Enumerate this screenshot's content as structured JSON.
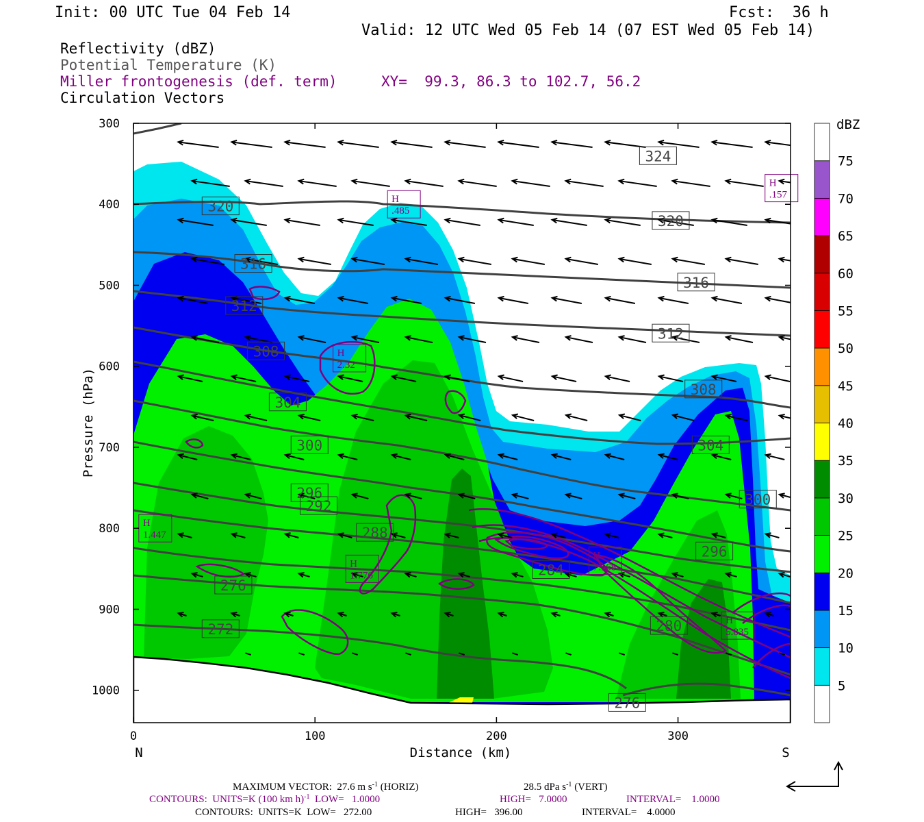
{
  "header": {
    "init": "Init: 00 UTC Tue 04 Feb 14",
    "fcst": "Fcst:  36 h",
    "valid": "Valid: 12 UTC Wed 05 Feb 14 (07 EST Wed 05 Feb 14)",
    "fields": [
      {
        "text": "Reflectivity (dBZ)",
        "color": "#000000"
      },
      {
        "text": "Potential Temperature (K)",
        "color": "#555555"
      },
      {
        "text": "Miller frontogenesis (def. term)",
        "color": "#800080"
      },
      {
        "text": "Circulation Vectors",
        "color": "#000000"
      }
    ],
    "xy": "XY=  99.3, 86.3 to 102.7, 56.2"
  },
  "footer": {
    "line1a": "MAXIMUM VECTOR:  27.6 m s",
    "line1a_sup": "-1",
    "line1b": " (HORIZ)",
    "line1c": "28.5 dPa s",
    "line1c_sup": "-1",
    "line1d": " (VERT)",
    "line2a": "CONTOURS:  UNITS=K (100 km h)",
    "line2a_sup": "-1",
    "line2b": "  LOW=   1.0000",
    "line2c": "HIGH=   7.0000",
    "line2d": "INTERVAL=    1.0000",
    "line3a": "CONTOURS:  UNITS=K  LOW=   272.00",
    "line3b": "HIGH=   396.00",
    "line3c": "INTERVAL=    4.0000"
  },
  "chart_data": {
    "type": "cross-section",
    "xlabel": "Distance (km)",
    "ylabel": "Pressure (hPa)",
    "xlim": [
      0,
      362
    ],
    "ylim": [
      1040,
      300
    ],
    "x_ticks": [
      0,
      100,
      200,
      300
    ],
    "y_ticks": [
      300,
      400,
      500,
      600,
      700,
      800,
      900,
      1000
    ],
    "x_end_labels": {
      "left": "N",
      "right": "S"
    },
    "colorbar": {
      "title": "dBZ",
      "levels": [
        5,
        10,
        15,
        20,
        25,
        30,
        35,
        40,
        45,
        50,
        55,
        60,
        65,
        70,
        75
      ],
      "colors": [
        "#ffffff",
        "#00e6ef",
        "#0096f5",
        "#0000f0",
        "#00f000",
        "#00c800",
        "#008c00",
        "#ffff00",
        "#e6c000",
        "#ff9000",
        "#ff0000",
        "#d80000",
        "#b00000",
        "#ff00ff",
        "#9955cc",
        "#ffffff"
      ]
    },
    "theta_labels": [
      {
        "v": "324",
        "x": 289,
        "p": 340
      },
      {
        "v": "320",
        "x": 48,
        "p": 402
      },
      {
        "v": "320",
        "x": 296,
        "p": 420
      },
      {
        "v": "316",
        "x": 66,
        "p": 473
      },
      {
        "v": "316",
        "x": 310,
        "p": 496
      },
      {
        "v": "312",
        "x": 61,
        "p": 525
      },
      {
        "v": "312",
        "x": 296,
        "p": 559
      },
      {
        "v": "308",
        "x": 73,
        "p": 581
      },
      {
        "v": "308",
        "x": 314,
        "p": 628
      },
      {
        "v": "304",
        "x": 85,
        "p": 644
      },
      {
        "v": "304",
        "x": 318,
        "p": 697
      },
      {
        "v": "300",
        "x": 97,
        "p": 697
      },
      {
        "v": "300",
        "x": 344,
        "p": 764
      },
      {
        "v": "296",
        "x": 97,
        "p": 756
      },
      {
        "v": "296",
        "x": 320,
        "p": 828
      },
      {
        "v": "292",
        "x": 102,
        "p": 772
      },
      {
        "v": "288",
        "x": 133,
        "p": 805
      },
      {
        "v": "284",
        "x": 230,
        "p": 851
      },
      {
        "v": "280",
        "x": 295,
        "p": 920
      },
      {
        "v": "276",
        "x": 55,
        "p": 870
      },
      {
        "v": "276",
        "x": 272,
        "p": 1015
      },
      {
        "v": "272",
        "x": 48,
        "p": 924
      }
    ],
    "frontogenesis_highs": [
      {
        "v": ".485",
        "x": 149,
        "p": 400
      },
      {
        "v": ".157",
        "x": 357,
        "p": 380
      },
      {
        "v": "2.32",
        "x": 119,
        "p": 590
      },
      {
        "v": "1.447",
        "x": 12,
        "p": 800
      },
      {
        "v": "1.776",
        "x": 126,
        "p": 850
      },
      {
        "v": "7.168",
        "x": 260,
        "p": 840
      },
      {
        "v": "5.835",
        "x": 333,
        "p": 920
      }
    ]
  }
}
